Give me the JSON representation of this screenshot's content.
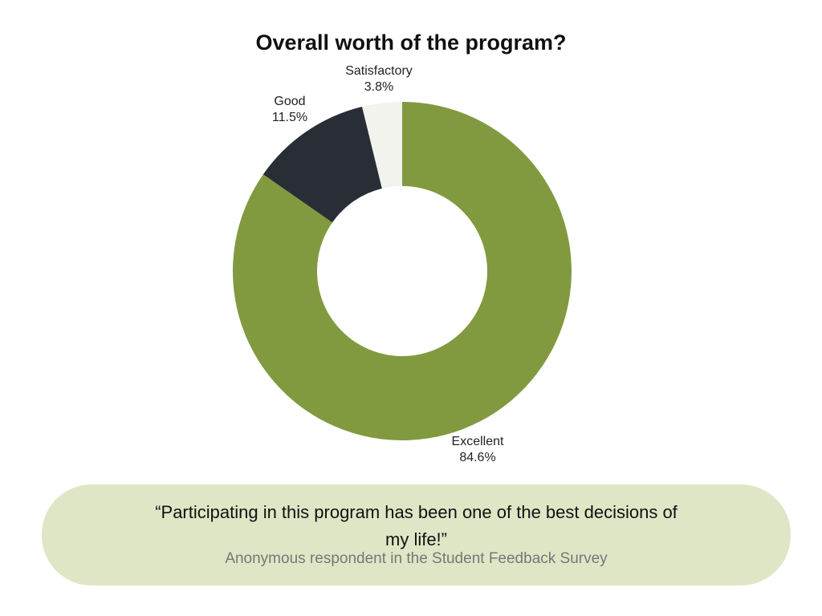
{
  "chart_data": {
    "type": "pie",
    "subtype": "donut",
    "title": "Overall worth of the program?",
    "categories": [
      "Excellent",
      "Good",
      "Satisfactory"
    ],
    "values": [
      84.6,
      11.5,
      3.8
    ],
    "labels": [
      "84.6%",
      "11.5%",
      "3.8%"
    ],
    "colors": [
      "#819a3f",
      "#292d36",
      "#f3f3ee"
    ],
    "start": "top, clockwise"
  },
  "quote": {
    "text": "“Participating in this program has been one of the best decisions of my life!”",
    "attribution": "Anonymous respondent in the Student Feedback Survey"
  }
}
